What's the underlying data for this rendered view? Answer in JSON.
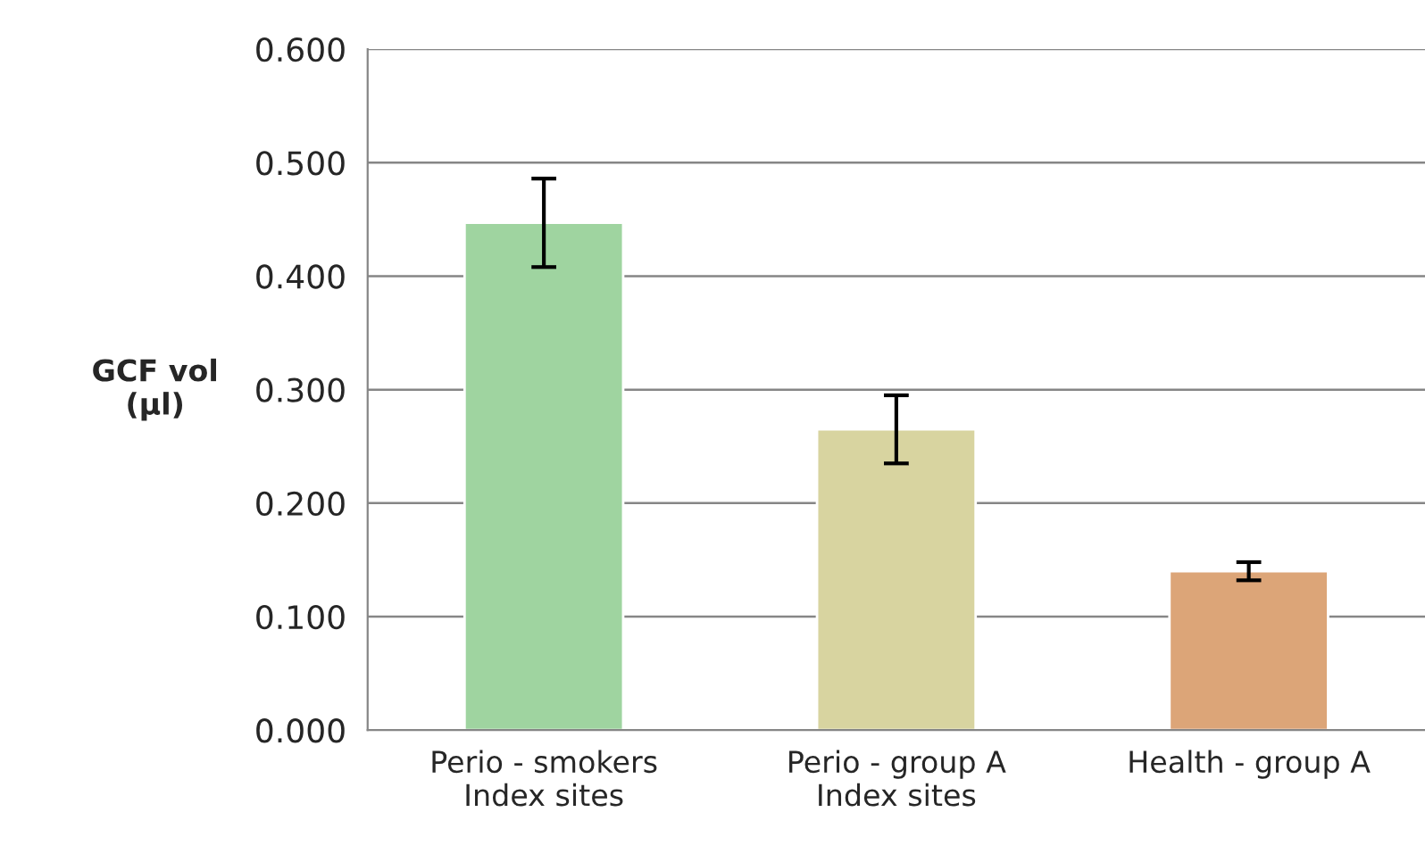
{
  "chart_data": {
    "type": "bar",
    "ylabel": "GCF vol\n(µl)",
    "categories": [
      "Perio - smokers\nIndex sites",
      "Perio - group A\nIndex sites",
      "Health - group A"
    ],
    "values": [
      0.447,
      0.265,
      0.14
    ],
    "errors": [
      0.039,
      0.03,
      0.008
    ],
    "colors": [
      "#9fd4a0",
      "#d8d4a0",
      "#dca578"
    ],
    "ylim": [
      0,
      0.6
    ],
    "yticks": [
      {
        "value": 0,
        "label": "0.000"
      },
      {
        "value": 0.1,
        "label": "0.100"
      },
      {
        "value": 0.2,
        "label": "0.200"
      },
      {
        "value": 0.3,
        "label": "0.300"
      },
      {
        "value": 0.4,
        "label": "0.400"
      },
      {
        "value": 0.5,
        "label": "0.500"
      },
      {
        "value": 0.6,
        "label": "0.600"
      }
    ],
    "grid": "y"
  }
}
